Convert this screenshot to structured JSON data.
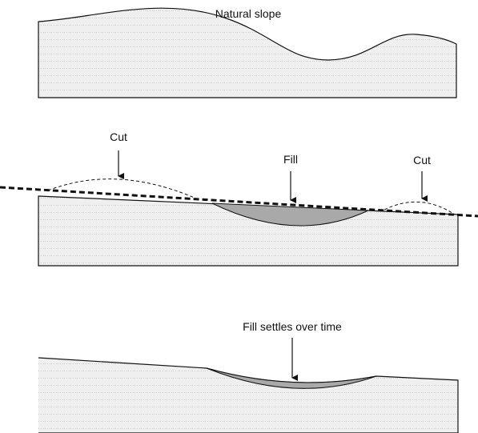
{
  "panels": [
    {
      "title": "Natural slope"
    },
    {
      "labels": [
        "Cut",
        "Fill",
        "Cut"
      ]
    },
    {
      "title": "Fill settles over time"
    }
  ]
}
